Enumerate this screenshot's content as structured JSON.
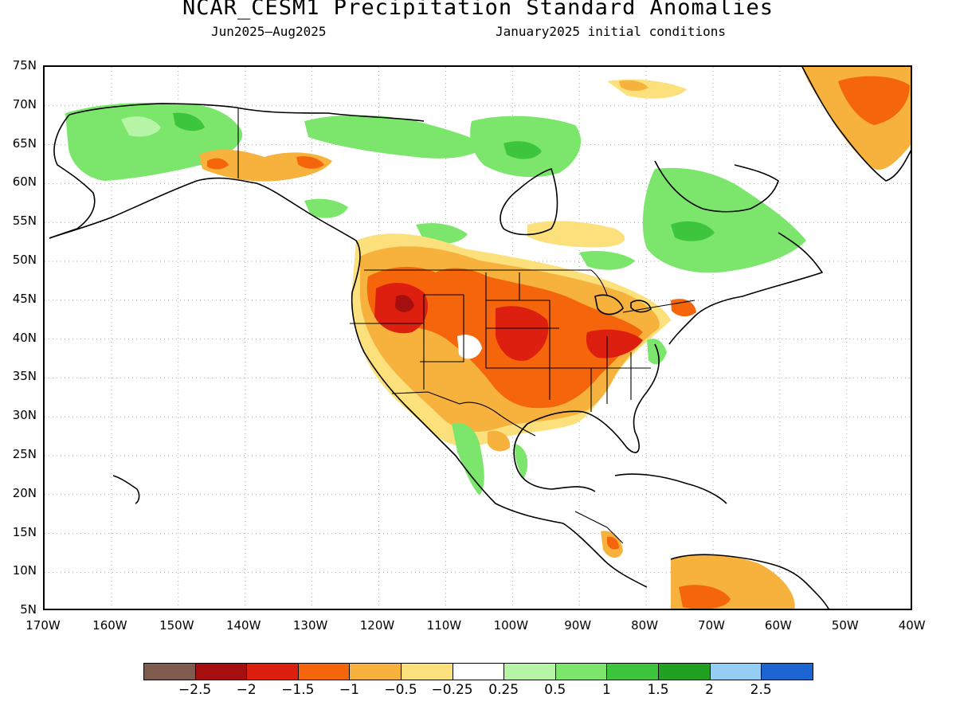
{
  "header": {
    "title": "NCAR_CESM1 Precipitation Standard Anomalies",
    "period": "Jun2025—Aug2025",
    "init": "January2025 initial conditions"
  },
  "axes": {
    "lat_labels": [
      "75N",
      "70N",
      "65N",
      "60N",
      "55N",
      "50N",
      "45N",
      "40N",
      "35N",
      "30N",
      "25N",
      "20N",
      "15N",
      "10N",
      "5N"
    ],
    "lon_labels": [
      "170W",
      "160W",
      "150W",
      "140W",
      "130W",
      "120W",
      "110W",
      "100W",
      "90W",
      "80W",
      "70W",
      "60W",
      "50W",
      "40W"
    ]
  },
  "legend": {
    "colors": [
      "#7f5a4f",
      "#a50f0f",
      "#dd1f0f",
      "#f4650c",
      "#f6b23c",
      "#fbe07c",
      "#ffffff",
      "#b5f5a5",
      "#7be66b",
      "#3dc63d",
      "#21a121",
      "#94cef5",
      "#1d65d3"
    ],
    "labels": [
      "−2.5",
      "−2",
      "−1.5",
      "−1",
      "−0.5",
      "−0.25",
      "0.25",
      "0.5",
      "1",
      "1.5",
      "2",
      "2.5"
    ]
  }
}
